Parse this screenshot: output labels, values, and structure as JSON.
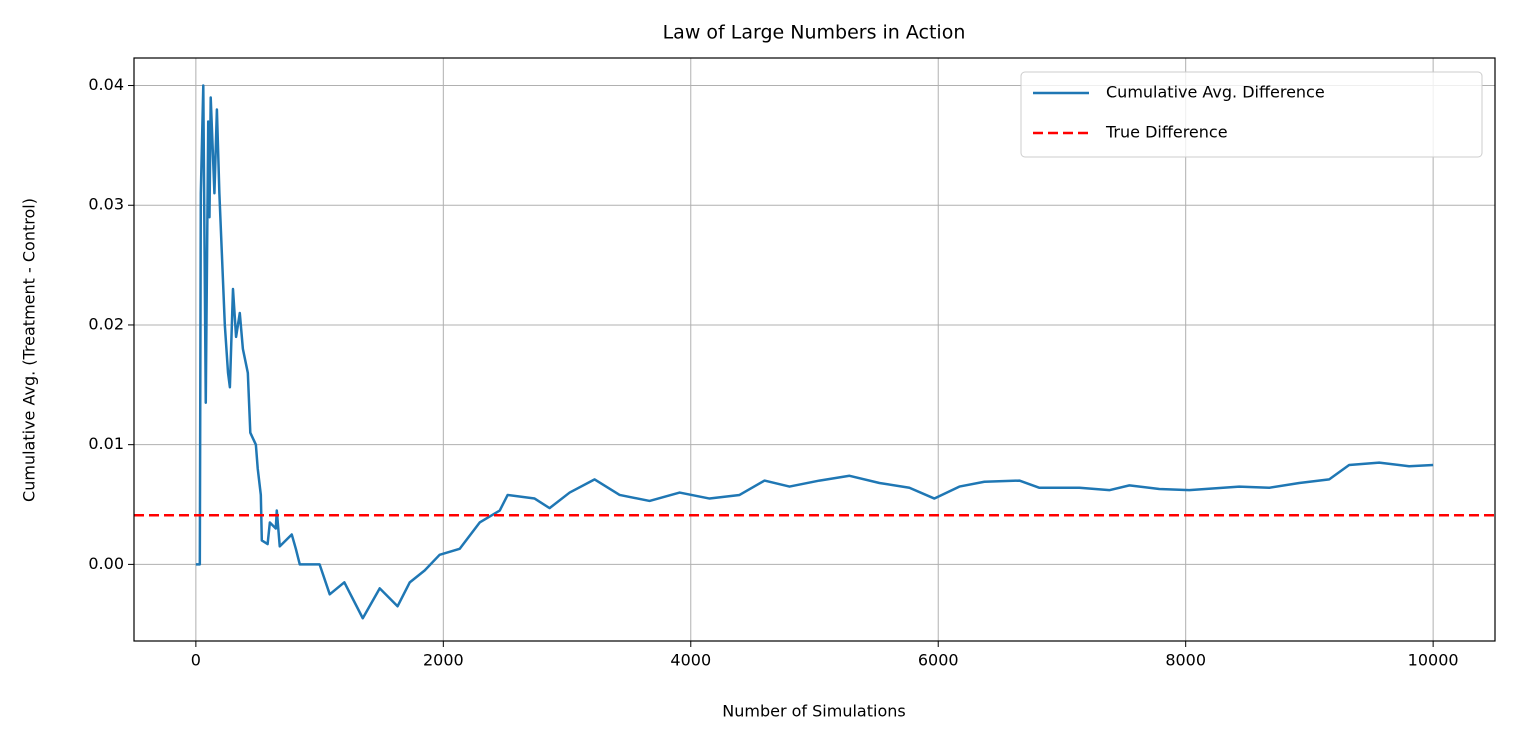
{
  "chart_data": {
    "type": "line",
    "title": "Law of Large Numbers in Action",
    "xlabel": "Number of Simulations",
    "ylabel": "Cumulative Avg. (Treatment - Control)",
    "xlim": [
      -500,
      10500
    ],
    "ylim": [
      -0.0064,
      0.0423
    ],
    "xticks": [
      0,
      2000,
      4000,
      6000,
      8000,
      10000
    ],
    "yticks": [
      {
        "value": 0,
        "label": "0.00"
      },
      0.01,
      0.02,
      0.03,
      0.04
    ],
    "grid": true,
    "legend": "upper right",
    "series": [
      {
        "name": "Cumulative Avg. Difference",
        "color": "#1f77b4",
        "x": [
          0,
          32,
          40,
          60,
          80,
          100,
          110,
          120,
          150,
          170,
          190,
          210,
          234,
          260,
          275,
          300,
          325,
          355,
          380,
          420,
          440,
          485,
          500,
          525,
          533,
          580,
          598,
          646,
          654,
          678,
          775,
          808,
          840,
          1000,
          1082,
          1200,
          1349,
          1486,
          1630,
          1729,
          1850,
          1970,
          2132,
          2294,
          2456,
          2520,
          2738,
          2859,
          3021,
          3223,
          3425,
          3667,
          3910,
          4152,
          4394,
          4596,
          4798,
          5040,
          5283,
          5525,
          5767,
          5969,
          6171,
          6373,
          6656,
          6818,
          7141,
          7383,
          7545,
          7787,
          8029,
          8433,
          8676,
          8918,
          9160,
          9321,
          9564,
          9806,
          10000
        ],
        "values": [
          0,
          0,
          0.031,
          0.04,
          0.0135,
          0.037,
          0.029,
          0.039,
          0.031,
          0.038,
          0.031,
          0.026,
          0.02,
          0.016,
          0.0148,
          0.023,
          0.019,
          0.021,
          0.018,
          0.016,
          0.011,
          0.01,
          0.008,
          0.0058,
          0.002,
          0.0017,
          0.0035,
          0.003,
          0.0045,
          0.0015,
          0.0025,
          0.0013,
          0,
          0,
          -0.0025,
          -0.0015,
          -0.0045,
          -0.002,
          -0.0035,
          -0.0015,
          -0.0005,
          0.0008,
          0.0013,
          0.0035,
          0.0045,
          0.0058,
          0.0055,
          0.0047,
          0.006,
          0.0071,
          0.0058,
          0.0053,
          0.006,
          0.0055,
          0.0058,
          0.007,
          0.0065,
          0.007,
          0.0074,
          0.0068,
          0.0064,
          0.0055,
          0.0065,
          0.0069,
          0.007,
          0.0064,
          0.0064,
          0.0062,
          0.0066,
          0.0063,
          0.0062,
          0.0065,
          0.0064,
          0.0068,
          0.0071,
          0.0083,
          0.0085,
          0.0082,
          0.0083
        ]
      },
      {
        "name": "True Difference",
        "color": "#ff0000",
        "linestyle": "dashed",
        "hline": 0.0041
      }
    ]
  }
}
